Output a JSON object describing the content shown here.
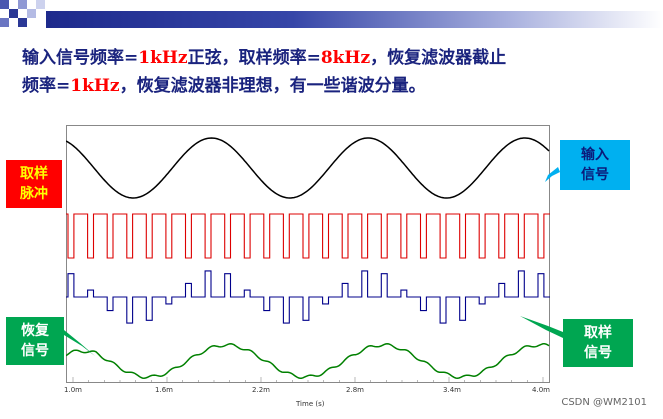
{
  "heading": {
    "line1_a": "输入信号频率=",
    "line1_b": "1kHz",
    "line1_c": "正弦，取样频率=",
    "line1_d": "8kHz",
    "line1_e": "，恢复滤波器截止",
    "line2_a": "频率=",
    "line2_b": "1kHz",
    "line2_c": "，恢复滤波器非理想，有一些谐波分量。"
  },
  "callouts": {
    "sampling_pulse_1": "取样",
    "sampling_pulse_2": "脉冲",
    "input_signal_1": "输入",
    "input_signal_2": "信号",
    "recovered_signal_1": "恢复",
    "recovered_signal_2": "信号",
    "sampled_signal_1": "取样",
    "sampled_signal_2": "信号"
  },
  "x_axis": {
    "ticks": [
      "1.0m",
      "1.6m",
      "2.2m",
      "2.8m",
      "3.4m",
      "4.0m"
    ],
    "label": "Time (s)"
  },
  "colors": {
    "input": "#000000",
    "pulse": "#dd0000",
    "sampled": "#00008b",
    "recovered": "#008000"
  },
  "watermark": "CSDN @WM2101"
}
